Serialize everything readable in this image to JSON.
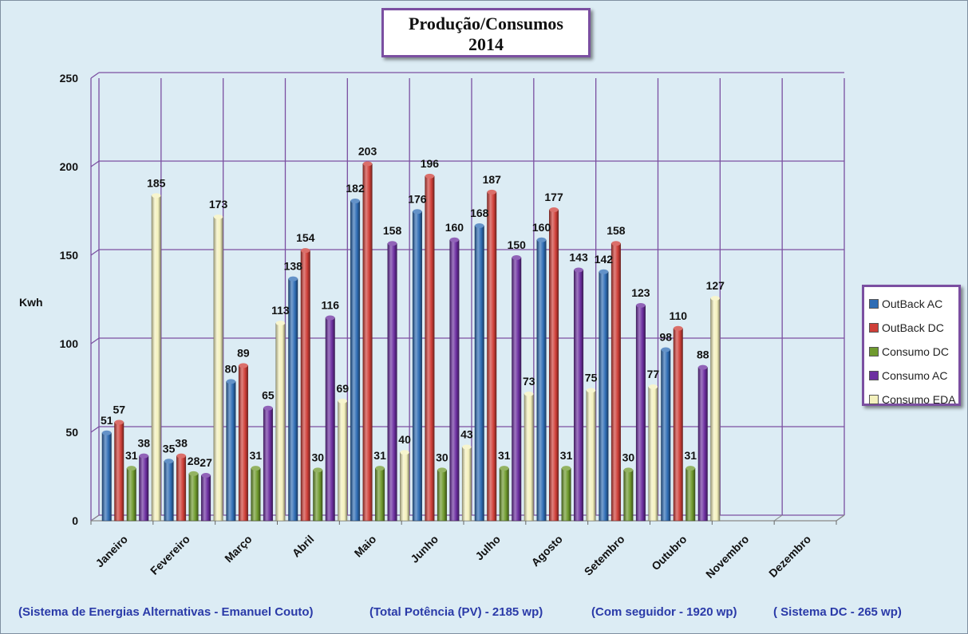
{
  "title": {
    "line1": "Produção/Consumos",
    "line2": "2014"
  },
  "footnotes": [
    "(Sistema de Energias Alternativas - Emanuel Couto)",
    "(Total Potência (PV) - 2185 wp)",
    "(Com seguidor - 1920 wp)",
    "( Sistema DC - 265 wp)"
  ],
  "colors": {
    "background": "#dcecf4",
    "grid": "#7b4fa1",
    "frame": "#7b4fa1"
  },
  "chart_data": {
    "type": "bar",
    "title": "Produção/Consumos 2014",
    "ylabel": "Kwh",
    "xlabel": "",
    "ylim": [
      0,
      250
    ],
    "yticks": [
      0,
      50,
      100,
      150,
      200,
      250
    ],
    "grid": true,
    "legend_position": "right",
    "categories": [
      "Janeiro",
      "Fevereiro",
      "Março",
      "Abril",
      "Maio",
      "Junho",
      "Julho",
      "Agosto",
      "Setembro",
      "Outubro",
      "Novembro",
      "Dezembro"
    ],
    "series": [
      {
        "name": "OutBack AC",
        "color": "#2f6db5",
        "values": [
          51,
          35,
          80,
          138,
          182,
          176,
          168,
          160,
          142,
          98,
          null,
          null
        ]
      },
      {
        "name": "OutBack DC",
        "color": "#cf3f38",
        "values": [
          57,
          38,
          89,
          154,
          203,
          196,
          187,
          177,
          158,
          110,
          null,
          null
        ]
      },
      {
        "name": "Consumo DC",
        "color": "#6f9a2e",
        "values": [
          31,
          28,
          31,
          30,
          31,
          30,
          31,
          31,
          30,
          31,
          null,
          null
        ]
      },
      {
        "name": "Consumo AC",
        "color": "#6c2fa0",
        "values": [
          38,
          27,
          65,
          116,
          158,
          160,
          150,
          143,
          123,
          88,
          null,
          null
        ]
      },
      {
        "name": "Consumo EDA",
        "color": "#f4f1bd",
        "values": [
          185,
          173,
          113,
          69,
          40,
          43,
          73,
          75,
          77,
          127,
          null,
          null
        ]
      }
    ]
  }
}
